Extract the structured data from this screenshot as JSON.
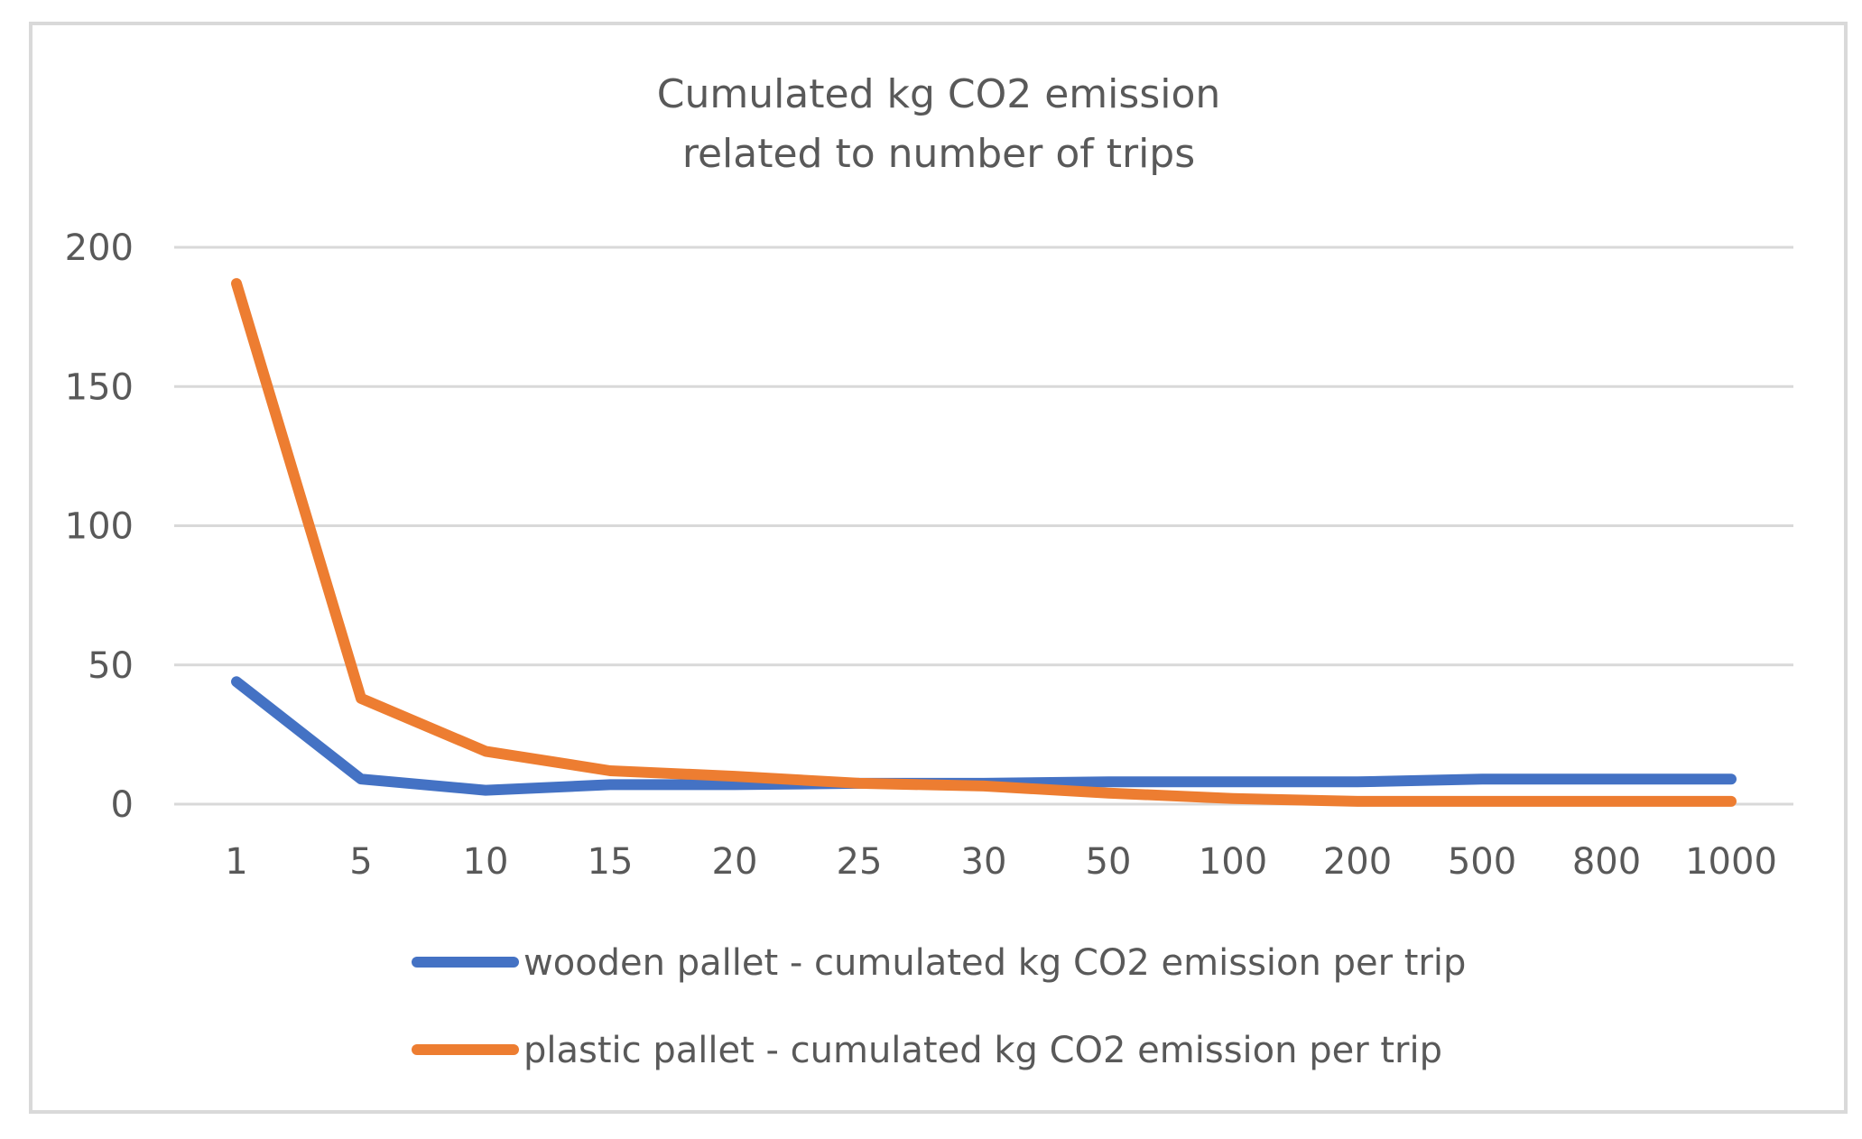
{
  "chart_data": {
    "type": "line",
    "title_lines": [
      "Cumulated kg CO2 emission",
      "related to number of trips"
    ],
    "categories": [
      "1",
      "5",
      "10",
      "15",
      "20",
      "25",
      "30",
      "50",
      "100",
      "200",
      "500",
      "800",
      "1000"
    ],
    "ylim": [
      0,
      200
    ],
    "yticks": [
      0,
      50,
      100,
      150,
      200
    ],
    "grid": true,
    "legend_position": "bottom",
    "series": [
      {
        "name": "wooden pallet - cumulated kg CO2 emission per trip",
        "color": "#4472C4",
        "values": [
          44,
          9,
          5,
          7,
          7,
          7.5,
          7.5,
          8,
          8,
          8,
          9,
          9,
          9
        ]
      },
      {
        "name": "plastic pallet - cumulated kg CO2 emission per trip",
        "color": "#ED7D31",
        "values": [
          187,
          38,
          19,
          12,
          10,
          7.5,
          6.5,
          4,
          2,
          1,
          1,
          1,
          1
        ]
      }
    ]
  }
}
